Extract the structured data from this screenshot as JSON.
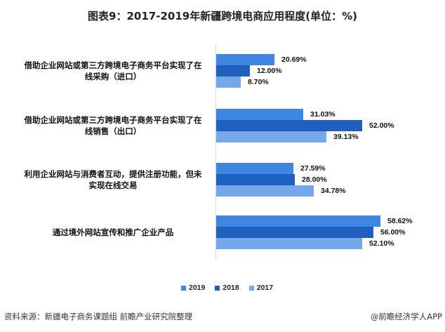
{
  "title": "图表9：2017-2019年新疆跨境电商应用程度(单位：%)",
  "source": "资料来源：新疆电子商务课题组 前瞻产业研究院整理",
  "credit": "@前瞻经济学人APP",
  "colors": {
    "2019": "#3F86E0",
    "2018": "#1F5FBF",
    "2017": "#74A8EB"
  },
  "legend": [
    {
      "label": "2019",
      "color": "#3F86E0"
    },
    {
      "label": "2018",
      "color": "#1F5FBF"
    },
    {
      "label": "2017",
      "color": "#74A8EB"
    }
  ],
  "labels": {
    "c0": [
      "借助企业网站或第三方跨境电子商务平台实现了在",
      "线采购（进口）"
    ],
    "c1": [
      "借助企业网站或第三方跨境电子商务平台实现了在",
      "线销售（出口）"
    ],
    "c2": [
      "利用企业网站与消费者互动，提供注册功能，但未",
      "实现在线交易"
    ],
    "c3": [
      "通过境外网站宣传和推广企业产品"
    ]
  },
  "values_text": {
    "c0": [
      "20.69%",
      "12.00%",
      "8.70%"
    ],
    "c1": [
      "31.03%",
      "52.00%",
      "39.13%"
    ],
    "c2": [
      "27.59%",
      "28.00%",
      "34.78%"
    ],
    "c3": [
      "58.62%",
      "56.00%",
      "52.10%"
    ]
  },
  "chart_data": {
    "type": "bar",
    "orientation": "horizontal",
    "title": "图表9：2017-2019年新疆跨境电商应用程度(单位：%)",
    "categories": [
      "借助企业网站或第三方跨境电子商务平台实现了在线采购（进口）",
      "借助企业网站或第三方跨境电子商务平台实现了在线销售（出口）",
      "利用企业网站与消费者互动，提供注册功能，但未实现在线交易",
      "通过境外网站宣传和推广企业产品"
    ],
    "series": [
      {
        "name": "2019",
        "values": [
          20.69,
          31.03,
          27.59,
          58.62
        ]
      },
      {
        "name": "2018",
        "values": [
          12.0,
          52.0,
          28.0,
          56.0
        ]
      },
      {
        "name": "2017",
        "values": [
          8.7,
          39.13,
          34.78,
          52.1
        ]
      }
    ],
    "xlabel": "",
    "ylabel": "",
    "unit": "%",
    "grid": false,
    "legend_position": "bottom",
    "data_labels": true
  }
}
